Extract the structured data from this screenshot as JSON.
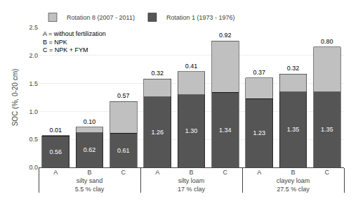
{
  "chart_data": {
    "type": "bar",
    "stacked": true,
    "categories": [
      "A",
      "B",
      "C",
      "A",
      "B",
      "C",
      "A",
      "B",
      "C"
    ],
    "groups": [
      {
        "label": "silty sand",
        "sublabel": "5.5 % clay"
      },
      {
        "label": "silty loam",
        "sublabel": "17 % clay"
      },
      {
        "label": "clayey loam",
        "sublabel": "27.5 % clay"
      }
    ],
    "series": [
      {
        "name": "Rotation 1 (1973 - 1976)",
        "color": "#555555",
        "values": [
          0.56,
          0.62,
          0.61,
          1.26,
          1.3,
          1.34,
          1.23,
          1.35,
          1.35
        ],
        "value_labels": [
          "0.56",
          "0.62",
          "0.61",
          "1.26",
          "1.30",
          "1.34",
          "1.23",
          "1.35",
          "1.35"
        ]
      },
      {
        "name": "Rotation 8 (2007 - 2011)",
        "color": "#c0c0c0",
        "values": [
          0.01,
          0.1,
          0.57,
          0.32,
          0.41,
          0.92,
          0.37,
          0.32,
          0.8
        ],
        "value_labels": [
          "0.01",
          "0.10",
          "0.57",
          "0.32",
          "0.41",
          "0.92",
          "0.37",
          "0.32",
          "0.80"
        ]
      }
    ],
    "ylabel": "SOC (%, 0-20 cm)",
    "ylim": [
      0.0,
      2.5
    ],
    "yticks": [
      {
        "value": 0,
        "label": "0.0"
      },
      0.5,
      {
        "value": 1,
        "label": "1.0"
      },
      1.5,
      {
        "value": 2,
        "label": "2.0"
      },
      2.5
    ],
    "grid": true,
    "legend": "upper left",
    "data_labels": true,
    "annotations": [
      "A = without fertilization",
      "B = NPK",
      "C = NPK + FYM"
    ]
  }
}
